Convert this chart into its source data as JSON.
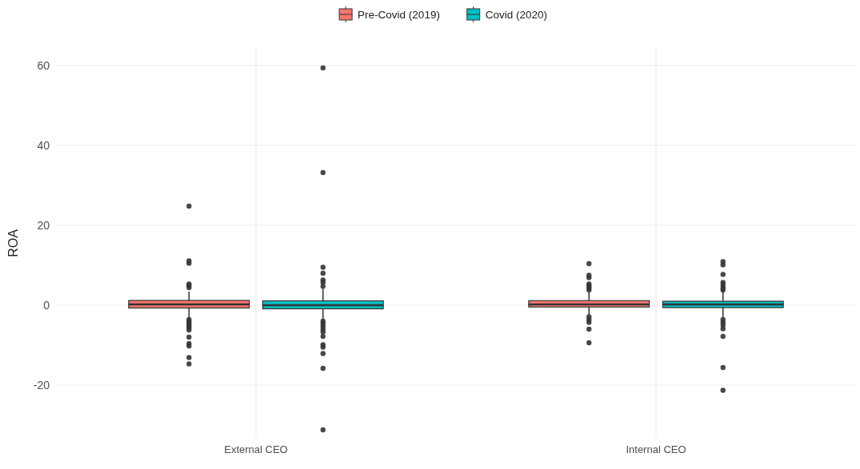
{
  "chart_data": {
    "type": "box",
    "ylabel": "ROA",
    "categories": [
      "External CEO",
      "Internal CEO"
    ],
    "ylim": [
      -33,
      64
    ],
    "yticks": [
      -20,
      0,
      20,
      40,
      60
    ],
    "grid": true,
    "legend": "top",
    "series": [
      {
        "name": "Pre-Covid (2019)",
        "color": "#f8766d",
        "boxes": [
          {
            "low": -3.3,
            "q1": -0.7,
            "median": 0.2,
            "q3": 1.2,
            "high": 3.4,
            "outliers": [
              24.8,
              11.1,
              10.5,
              5.3,
              4.9,
              4.4,
              -3.6,
              -4.1,
              -4.6,
              -5.1,
              -5.6,
              -6.2,
              -8.0,
              -9.6,
              -10.2,
              -13.1,
              -14.7
            ]
          },
          {
            "low": -2.6,
            "q1": -0.45,
            "median": 0.2,
            "q3": 1.15,
            "high": 3.2,
            "outliers": [
              10.4,
              7.5,
              6.9,
              5.3,
              4.8,
              4.3,
              3.8,
              -2.9,
              -3.6,
              -4.3,
              -6.0,
              -9.4
            ]
          }
        ]
      },
      {
        "name": "Covid (2020)",
        "color": "#00bfc4",
        "boxes": [
          {
            "low": -3.5,
            "q1": -0.9,
            "median": 0.0,
            "q3": 1.1,
            "high": 4.0,
            "outliers": [
              59.4,
              33.2,
              9.5,
              8.0,
              6.3,
              5.7,
              4.7,
              -4.0,
              -4.6,
              -5.3,
              -6.0,
              -6.7,
              -7.8,
              -9.9,
              -10.5,
              -12.1,
              -15.8,
              -31.2
            ]
          },
          {
            "low": -3.0,
            "q1": -0.6,
            "median": 0.2,
            "q3": 1.0,
            "high": 3.5,
            "outliers": [
              10.9,
              10.1,
              7.7,
              5.7,
              5.0,
              4.3,
              3.8,
              -3.6,
              -4.3,
              -5.0,
              -5.9,
              -7.8,
              -15.6,
              -21.3
            ]
          }
        ]
      }
    ]
  }
}
